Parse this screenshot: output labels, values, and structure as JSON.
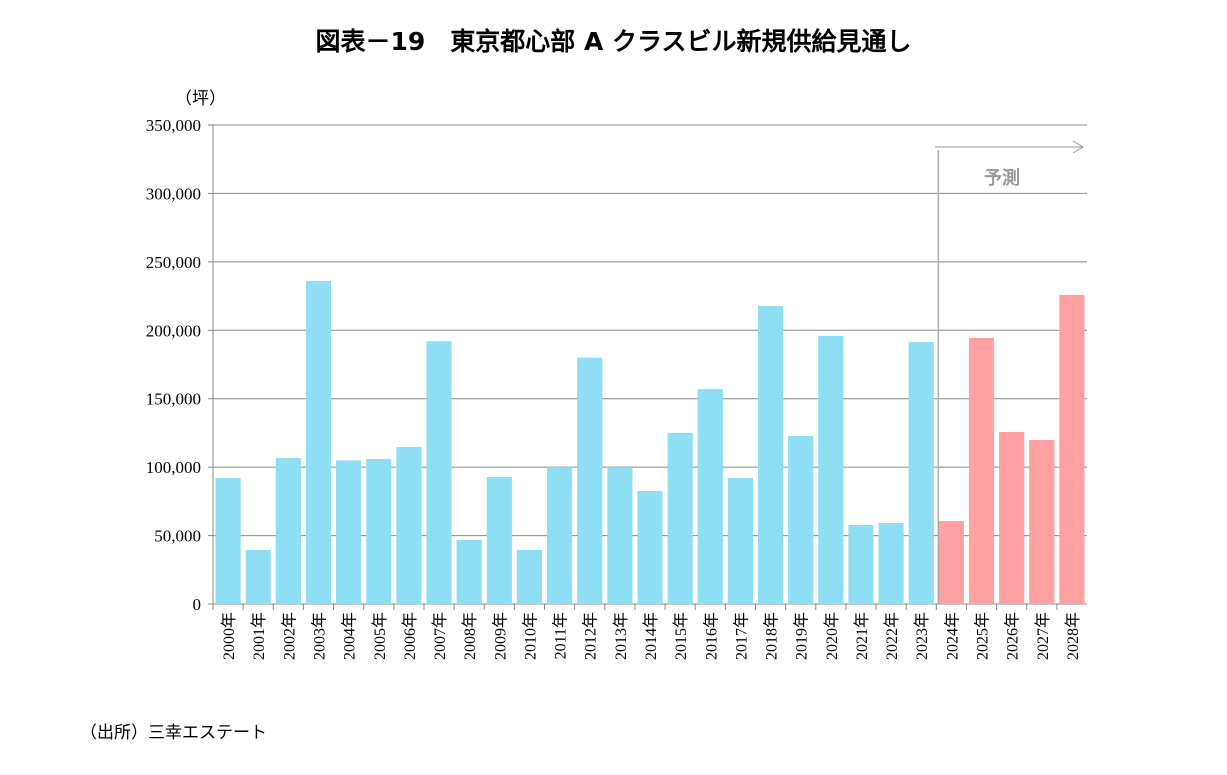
{
  "chart_data": {
    "type": "bar",
    "title": "図表－19　東京都心部 A クラスビル新規供給見通し",
    "ylabel": "（坪）",
    "ylim": [
      0,
      350000
    ],
    "yticks": [
      "0",
      "50,000",
      "100,000",
      "150,000",
      "200,000",
      "250,000",
      "300,000",
      "350,000"
    ],
    "ytick_values": [
      0,
      50000,
      100000,
      150000,
      200000,
      250000,
      300000,
      350000
    ],
    "grid": true,
    "categories": [
      "2000年",
      "2001年",
      "2002年",
      "2003年",
      "2004年",
      "2005年",
      "2006年",
      "2007年",
      "2008年",
      "2009年",
      "2010年",
      "2011年",
      "2012年",
      "2013年",
      "2014年",
      "2015年",
      "2016年",
      "2017年",
      "2018年",
      "2019年",
      "2020年",
      "2021年",
      "2022年",
      "2023年",
      "2024年",
      "2025年",
      "2026年",
      "2027年",
      "2028年"
    ],
    "values": [
      92000,
      39500,
      106700,
      236000,
      105000,
      106000,
      114700,
      192000,
      46800,
      92800,
      39500,
      100000,
      180000,
      100000,
      82600,
      125000,
      157000,
      92000,
      217700,
      122800,
      195800,
      57700,
      59200,
      191400,
      60600,
      194400,
      125700,
      119800,
      225800
    ],
    "forecast_start": "2024年",
    "forecast_label": "予測",
    "colors": {
      "actual": "#8EDEF4",
      "forecast": "#FFA0A2"
    },
    "source": "（出所）三幸エステート"
  }
}
